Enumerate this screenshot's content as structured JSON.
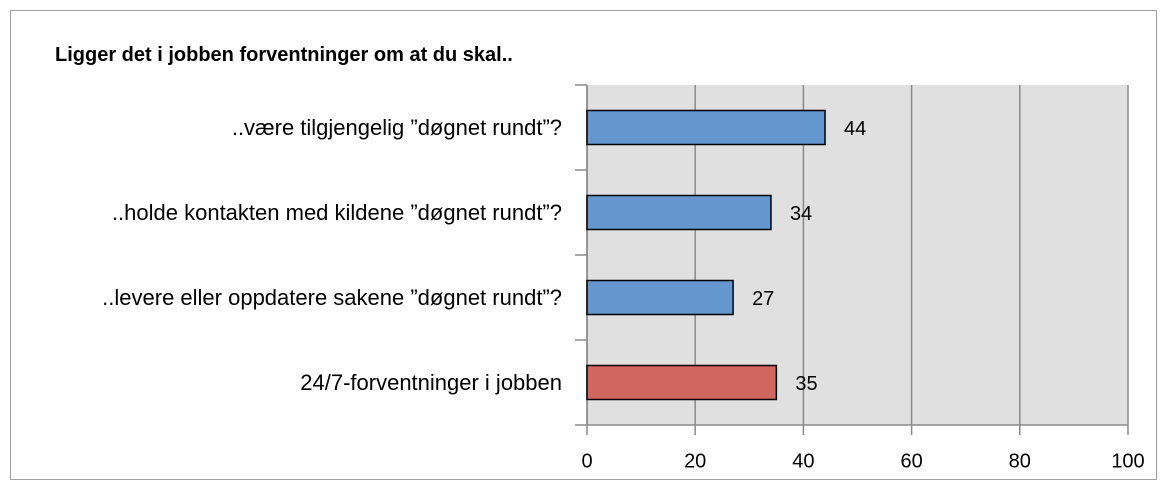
{
  "chart_data": {
    "type": "bar",
    "orientation": "horizontal",
    "title": "Ligger det i jobben forventninger om at du skal..",
    "categories": [
      "..være tilgjengelig ”døgnet rundt”?",
      "..holde kontakten med kildene ”døgnet rundt”?",
      "..levere eller oppdatere sakene ”døgnet rundt”?",
      "24/7-forventninger i jobben"
    ],
    "values": [
      44,
      34,
      27,
      35
    ],
    "colors": [
      "#6497cd",
      "#6497cd",
      "#6497cd",
      "#d0665f"
    ],
    "xlim": [
      0,
      100
    ],
    "xticks": [
      0,
      20,
      40,
      60,
      80,
      100
    ],
    "grid": true
  }
}
